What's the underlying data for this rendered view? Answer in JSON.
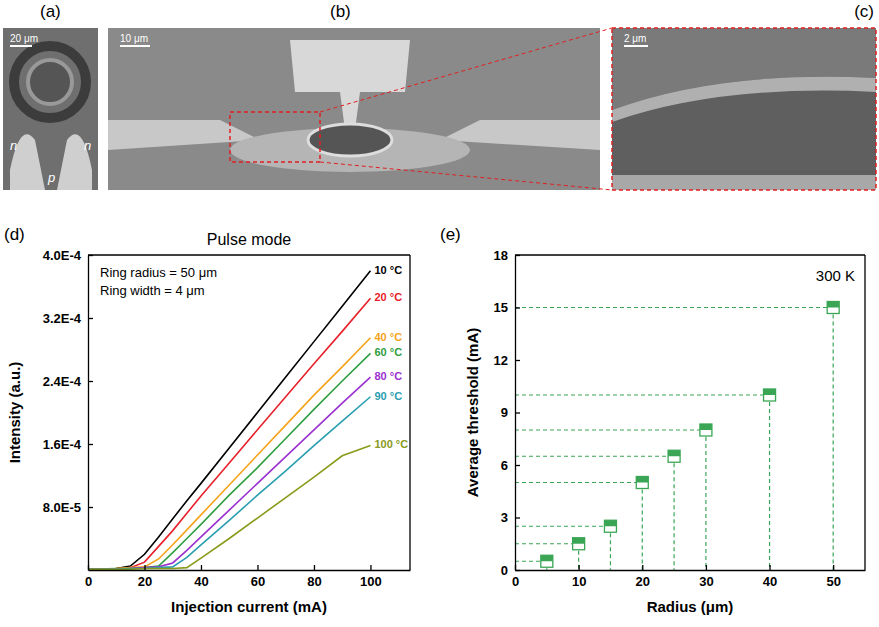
{
  "images": [
    {
      "label": "(a)",
      "scale_bar": "20 μm",
      "labels": [
        "n",
        "p",
        "n"
      ]
    },
    {
      "label": "(b)",
      "scale_bar": "10 μm"
    },
    {
      "label": "(c)",
      "scale_bar": "2 μm"
    }
  ],
  "chart_data": [
    {
      "type": "line",
      "panel": "(d)",
      "title": "Pulse mode",
      "annotations": [
        "Ring radius = 50 μm",
        "Ring width = 4 μm"
      ],
      "x_label": "Injection current (mA)",
      "y_label": "Intensity (a.u.)",
      "x": [
        0,
        10,
        15,
        20,
        25,
        30,
        35,
        40,
        50,
        60,
        70,
        80,
        90,
        100
      ],
      "series": [
        {
          "name": "10 °C",
          "color": "#000000",
          "values": [
            1e-06,
            2e-06,
            5e-06,
            2e-05,
            4.2e-05,
            6.5e-05,
            8.8e-05,
            0.00011,
            0.000155,
            0.0002,
            0.000245,
            0.00029,
            0.000335,
            0.00038
          ]
        },
        {
          "name": "20 °C",
          "color": "#e8202a",
          "values": [
            1e-06,
            2e-06,
            3e-06,
            1e-05,
            3e-05,
            5e-05,
            7.2e-05,
            9.4e-05,
            0.000136,
            0.000178,
            0.00022,
            0.000262,
            0.000303,
            0.000345
          ]
        },
        {
          "name": "40 °C",
          "color": "#f5a31a",
          "values": [
            1e-06,
            2e-06,
            3e-06,
            4e-06,
            1.4e-05,
            3.2e-05,
            5.1e-05,
            7e-05,
            0.000108,
            0.000146,
            0.000184,
            0.000222,
            0.000258,
            0.000295
          ]
        },
        {
          "name": "60 °C",
          "color": "#2e9e3e",
          "values": [
            1e-06,
            2e-06,
            2e-06,
            3e-06,
            5e-06,
            2.2e-05,
            4e-05,
            5.8e-05,
            9.5e-05,
            0.00013,
            0.000167,
            0.000204,
            0.00024,
            0.000275
          ]
        },
        {
          "name": "80 °C",
          "color": "#9b30d0",
          "values": [
            1e-06,
            1e-06,
            2e-06,
            3e-06,
            4e-06,
            9e-06,
            2.5e-05,
            4.2e-05,
            7.6e-05,
            0.00011,
            0.000144,
            0.000178,
            0.000212,
            0.000245
          ]
        },
        {
          "name": "90 °C",
          "color": "#2a9eb0",
          "values": [
            1e-06,
            1e-06,
            2e-06,
            2e-06,
            3e-06,
            4e-06,
            1.6e-05,
            3.2e-05,
            6.3e-05,
            9.5e-05,
            0.000126,
            0.000158,
            0.000189,
            0.00022
          ]
        },
        {
          "name": "100 °C",
          "color": "#8a9a1a",
          "values": [
            1e-06,
            1e-06,
            1e-06,
            2e-06,
            2e-06,
            2e-06,
            3e-06,
            1.5e-05,
            4e-05,
            6.6e-05,
            9.2e-05,
            0.000118,
            0.000145,
            0.000158
          ]
        }
      ],
      "line_style": "solid",
      "xlim": [
        0,
        114
      ],
      "xticks": [
        0,
        20,
        40,
        60,
        80,
        100
      ],
      "ylim": [
        0,
        0.0004
      ],
      "yticks": [
        {
          "value": 8e-05,
          "label": "8.0E-5"
        },
        {
          "value": 0.00016,
          "label": "1.6E-4"
        },
        {
          "value": 0.00024,
          "label": "2.4E-4"
        },
        {
          "value": 0.00032,
          "label": "3.2E-4"
        },
        {
          "value": 0.0004,
          "label": "4.0E-4"
        }
      ]
    },
    {
      "type": "scatter",
      "panel": "(e)",
      "annotation": "300 K",
      "x_label": "Radius (μm)",
      "y_label": "Average threshold (mA)",
      "x": [
        5,
        10,
        15,
        20,
        25,
        30,
        40,
        50
      ],
      "values": [
        0.5,
        1.5,
        2.5,
        5,
        6.5,
        8,
        10,
        15
      ],
      "color": "#3aa655",
      "marker": "square",
      "line_style": "dashed",
      "xlim": [
        0,
        55
      ],
      "xticks": [
        0,
        10,
        20,
        30,
        40,
        50
      ],
      "ylim": [
        0,
        18
      ],
      "yticks": [
        0,
        3,
        6,
        9,
        12,
        15,
        18
      ]
    }
  ]
}
